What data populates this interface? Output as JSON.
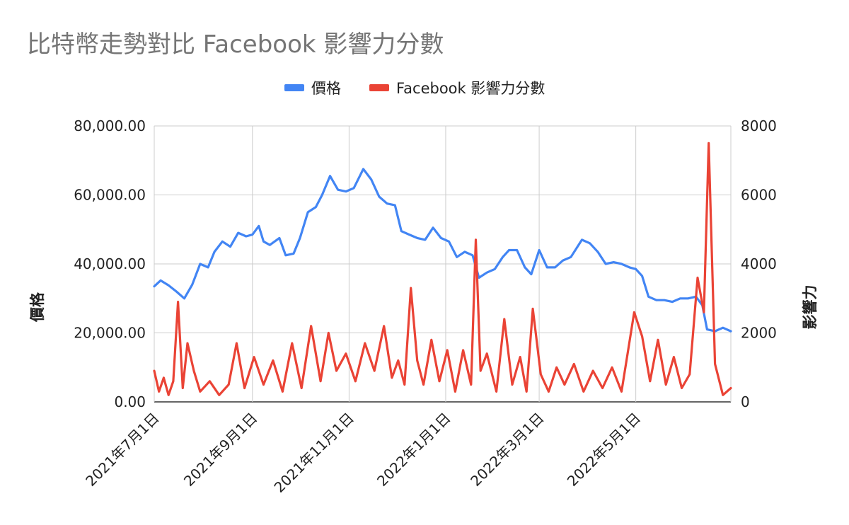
{
  "chart_data": {
    "type": "line",
    "title": "比特幣走勢對比 Facebook 影響力分數",
    "ylabel_left": "價格",
    "ylabel_right": "影響力",
    "x_range": [
      "2021-07-01",
      "2022-06-30"
    ],
    "x_ticks": [
      "2021年7月1日",
      "2021年9月1日",
      "2021年11月1日",
      "2022年1月1日",
      "2022年3月1日",
      "2022年5月1日"
    ],
    "y_left": {
      "range": [
        0,
        80000
      ],
      "ticks": [
        "0.00",
        "20,000.00",
        "40,000.00",
        "60,000.00",
        "80,000.00"
      ]
    },
    "y_right": {
      "range": [
        0,
        8000
      ],
      "ticks": [
        "0",
        "2000",
        "4000",
        "6000",
        "8000"
      ]
    },
    "grid": true,
    "legend_position": "top",
    "series": [
      {
        "name": "價格",
        "axis": "left",
        "color": "#4285F4",
        "points": [
          [
            "2021-07-01",
            33500
          ],
          [
            "2021-07-05",
            35200
          ],
          [
            "2021-07-10",
            33800
          ],
          [
            "2021-07-15",
            32000
          ],
          [
            "2021-07-20",
            30000
          ],
          [
            "2021-07-25",
            34000
          ],
          [
            "2021-07-30",
            40000
          ],
          [
            "2021-08-04",
            39000
          ],
          [
            "2021-08-08",
            43500
          ],
          [
            "2021-08-13",
            46500
          ],
          [
            "2021-08-18",
            45000
          ],
          [
            "2021-08-23",
            49000
          ],
          [
            "2021-08-28",
            48000
          ],
          [
            "2021-09-01",
            48500
          ],
          [
            "2021-09-05",
            51000
          ],
          [
            "2021-09-08",
            46500
          ],
          [
            "2021-09-12",
            45500
          ],
          [
            "2021-09-18",
            47500
          ],
          [
            "2021-09-22",
            42500
          ],
          [
            "2021-09-27",
            43000
          ],
          [
            "2021-10-01",
            47500
          ],
          [
            "2021-10-06",
            55000
          ],
          [
            "2021-10-11",
            56500
          ],
          [
            "2021-10-15",
            60000
          ],
          [
            "2021-10-20",
            65500
          ],
          [
            "2021-10-25",
            61500
          ],
          [
            "2021-10-30",
            61000
          ],
          [
            "2021-11-04",
            62000
          ],
          [
            "2021-11-10",
            67500
          ],
          [
            "2021-11-15",
            64500
          ],
          [
            "2021-11-20",
            59500
          ],
          [
            "2021-11-25",
            57500
          ],
          [
            "2021-11-30",
            57000
          ],
          [
            "2021-12-04",
            49500
          ],
          [
            "2021-12-09",
            48500
          ],
          [
            "2021-12-14",
            47500
          ],
          [
            "2021-12-19",
            47000
          ],
          [
            "2021-12-24",
            50500
          ],
          [
            "2021-12-29",
            47500
          ],
          [
            "2022-01-03",
            46500
          ],
          [
            "2022-01-08",
            42000
          ],
          [
            "2022-01-13",
            43500
          ],
          [
            "2022-01-18",
            42500
          ],
          [
            "2022-01-22",
            36000
          ],
          [
            "2022-01-27",
            37500
          ],
          [
            "2022-02-01",
            38500
          ],
          [
            "2022-02-06",
            42000
          ],
          [
            "2022-02-10",
            44000
          ],
          [
            "2022-02-15",
            44000
          ],
          [
            "2022-02-20",
            39000
          ],
          [
            "2022-02-24",
            37000
          ],
          [
            "2022-03-01",
            44000
          ],
          [
            "2022-03-06",
            39000
          ],
          [
            "2022-03-11",
            39000
          ],
          [
            "2022-03-16",
            41000
          ],
          [
            "2022-03-21",
            42000
          ],
          [
            "2022-03-28",
            47000
          ],
          [
            "2022-04-02",
            46000
          ],
          [
            "2022-04-07",
            43500
          ],
          [
            "2022-04-12",
            40000
          ],
          [
            "2022-04-17",
            40500
          ],
          [
            "2022-04-22",
            40000
          ],
          [
            "2022-04-27",
            39000
          ],
          [
            "2022-05-01",
            38500
          ],
          [
            "2022-05-05",
            36500
          ],
          [
            "2022-05-09",
            30500
          ],
          [
            "2022-05-14",
            29500
          ],
          [
            "2022-05-19",
            29500
          ],
          [
            "2022-05-24",
            29000
          ],
          [
            "2022-05-29",
            30000
          ],
          [
            "2022-06-03",
            30000
          ],
          [
            "2022-06-08",
            30500
          ],
          [
            "2022-06-12",
            28000
          ],
          [
            "2022-06-15",
            21000
          ],
          [
            "2022-06-20",
            20500
          ],
          [
            "2022-06-25",
            21500
          ],
          [
            "2022-06-30",
            20500
          ]
        ]
      },
      {
        "name": "Facebook 影響力分數",
        "axis": "right",
        "color": "#EA4335",
        "points": [
          [
            "2021-07-01",
            900
          ],
          [
            "2021-07-04",
            300
          ],
          [
            "2021-07-07",
            700
          ],
          [
            "2021-07-10",
            200
          ],
          [
            "2021-07-13",
            600
          ],
          [
            "2021-07-16",
            2900
          ],
          [
            "2021-07-19",
            400
          ],
          [
            "2021-07-22",
            1700
          ],
          [
            "2021-07-26",
            900
          ],
          [
            "2021-07-30",
            300
          ],
          [
            "2021-08-05",
            600
          ],
          [
            "2021-08-11",
            200
          ],
          [
            "2021-08-17",
            500
          ],
          [
            "2021-08-22",
            1700
          ],
          [
            "2021-08-27",
            400
          ],
          [
            "2021-09-02",
            1300
          ],
          [
            "2021-09-08",
            500
          ],
          [
            "2021-09-14",
            1200
          ],
          [
            "2021-09-20",
            300
          ],
          [
            "2021-09-26",
            1700
          ],
          [
            "2021-10-02",
            400
          ],
          [
            "2021-10-08",
            2200
          ],
          [
            "2021-10-14",
            600
          ],
          [
            "2021-10-19",
            2000
          ],
          [
            "2021-10-24",
            900
          ],
          [
            "2021-10-30",
            1400
          ],
          [
            "2021-11-05",
            600
          ],
          [
            "2021-11-11",
            1700
          ],
          [
            "2021-11-17",
            900
          ],
          [
            "2021-11-23",
            2200
          ],
          [
            "2021-11-28",
            700
          ],
          [
            "2021-12-02",
            1200
          ],
          [
            "2021-12-06",
            500
          ],
          [
            "2021-12-10",
            3300
          ],
          [
            "2021-12-14",
            1200
          ],
          [
            "2021-12-18",
            500
          ],
          [
            "2021-12-23",
            1800
          ],
          [
            "2021-12-28",
            600
          ],
          [
            "2022-01-02",
            1500
          ],
          [
            "2022-01-07",
            300
          ],
          [
            "2022-01-12",
            1500
          ],
          [
            "2022-01-17",
            500
          ],
          [
            "2022-01-20",
            4700
          ],
          [
            "2022-01-23",
            900
          ],
          [
            "2022-01-27",
            1400
          ],
          [
            "2022-02-02",
            300
          ],
          [
            "2022-02-07",
            2400
          ],
          [
            "2022-02-12",
            500
          ],
          [
            "2022-02-17",
            1300
          ],
          [
            "2022-02-21",
            300
          ],
          [
            "2022-02-25",
            2700
          ],
          [
            "2022-03-02",
            800
          ],
          [
            "2022-03-07",
            300
          ],
          [
            "2022-03-12",
            1000
          ],
          [
            "2022-03-17",
            500
          ],
          [
            "2022-03-23",
            1100
          ],
          [
            "2022-03-29",
            300
          ],
          [
            "2022-04-04",
            900
          ],
          [
            "2022-04-10",
            400
          ],
          [
            "2022-04-16",
            1000
          ],
          [
            "2022-04-22",
            300
          ],
          [
            "2022-04-30",
            2600
          ],
          [
            "2022-05-05",
            1900
          ],
          [
            "2022-05-10",
            600
          ],
          [
            "2022-05-15",
            1800
          ],
          [
            "2022-05-20",
            500
          ],
          [
            "2022-05-25",
            1300
          ],
          [
            "2022-05-30",
            400
          ],
          [
            "2022-06-04",
            800
          ],
          [
            "2022-06-09",
            3600
          ],
          [
            "2022-06-13",
            2600
          ],
          [
            "2022-06-16",
            7500
          ],
          [
            "2022-06-20",
            1100
          ],
          [
            "2022-06-25",
            200
          ],
          [
            "2022-06-30",
            400
          ]
        ]
      }
    ]
  }
}
